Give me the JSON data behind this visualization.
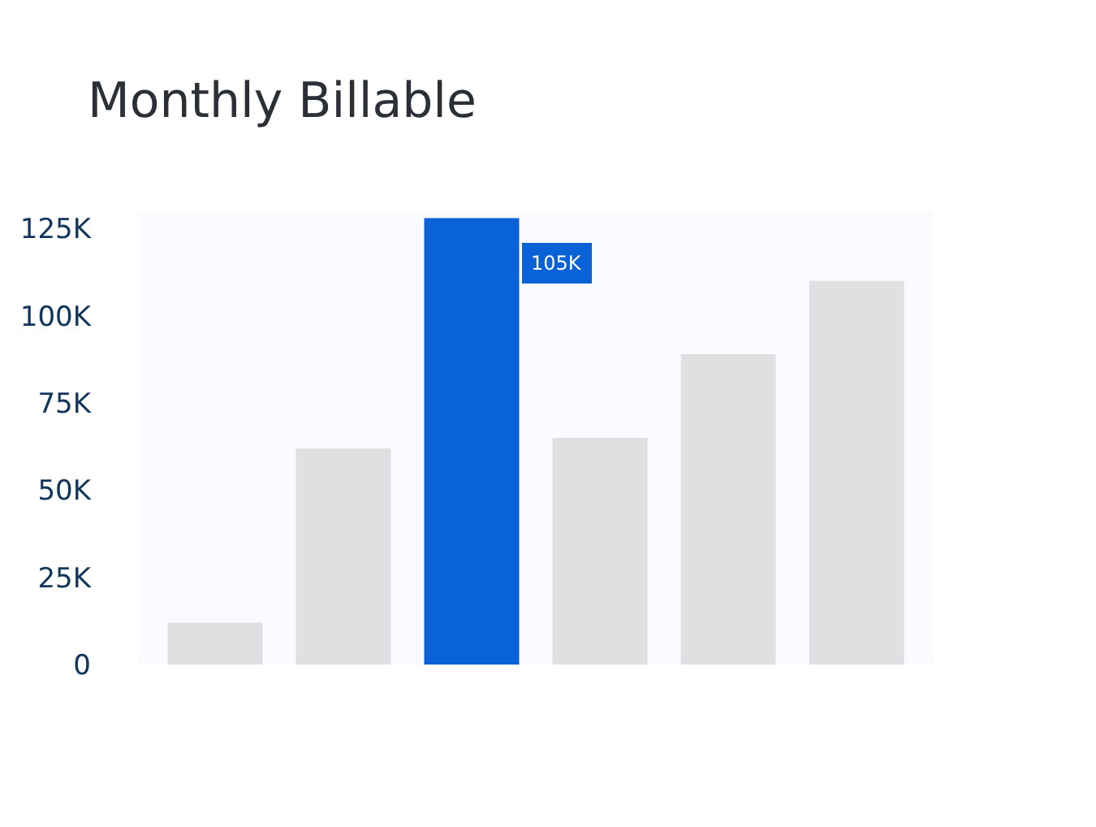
{
  "chart_data": {
    "type": "bar",
    "title": "Monthly Billable",
    "categories": [
      null,
      null,
      null,
      null,
      null,
      null
    ],
    "values": [
      12,
      62,
      128,
      65,
      89,
      110
    ],
    "colors": [
      "#e0e0e2",
      "#e0e0e2",
      "#0a63d6",
      "#e0e0e2",
      "#e0e0e2",
      "#e0e0e2"
    ],
    "ylim": [
      0,
      130
    ],
    "yticks": [
      {
        "value": 0,
        "label": "0"
      },
      {
        "value": 25,
        "label": "25K"
      },
      {
        "value": 50,
        "label": "50K"
      },
      {
        "value": 75,
        "label": "75K"
      },
      {
        "value": 100,
        "label": "100K"
      },
      {
        "value": 125,
        "label": "125K"
      }
    ],
    "annotations": [
      {
        "text": "105K",
        "y": 115
      }
    ]
  }
}
